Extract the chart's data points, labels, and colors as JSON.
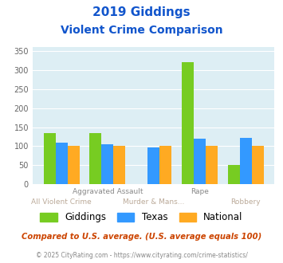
{
  "title_line1": "2019 Giddings",
  "title_line2": "Violent Crime Comparison",
  "categories": [
    "All Violent Crime",
    "Aggravated Assault",
    "Murder & Mans...",
    "Rape",
    "Robbery"
  ],
  "giddings": [
    135,
    135,
    0,
    320,
    50
  ],
  "texas": [
    110,
    105,
    97,
    120,
    122
  ],
  "national": [
    100,
    100,
    100,
    100,
    100
  ],
  "color_giddings": "#77cc22",
  "color_texas": "#3399ff",
  "color_national": "#ffaa22",
  "ylim": [
    0,
    360
  ],
  "yticks": [
    0,
    50,
    100,
    150,
    200,
    250,
    300,
    350
  ],
  "bg_color": "#ddeef4",
  "title_color": "#1155cc",
  "footnote1": "Compared to U.S. average. (U.S. average equals 100)",
  "footnote2": "© 2025 CityRating.com - https://www.cityrating.com/crime-statistics/",
  "footnote1_color": "#cc4400",
  "footnote2_color": "#888888",
  "row1_labels": [
    "",
    "Aggravated Assault",
    "",
    "Rape",
    ""
  ],
  "row2_labels": [
    "All Violent Crime",
    "",
    "Murder & Mans...",
    "",
    "Robbery"
  ],
  "row1_color": "#888888",
  "row2_color": "#bbaa99"
}
